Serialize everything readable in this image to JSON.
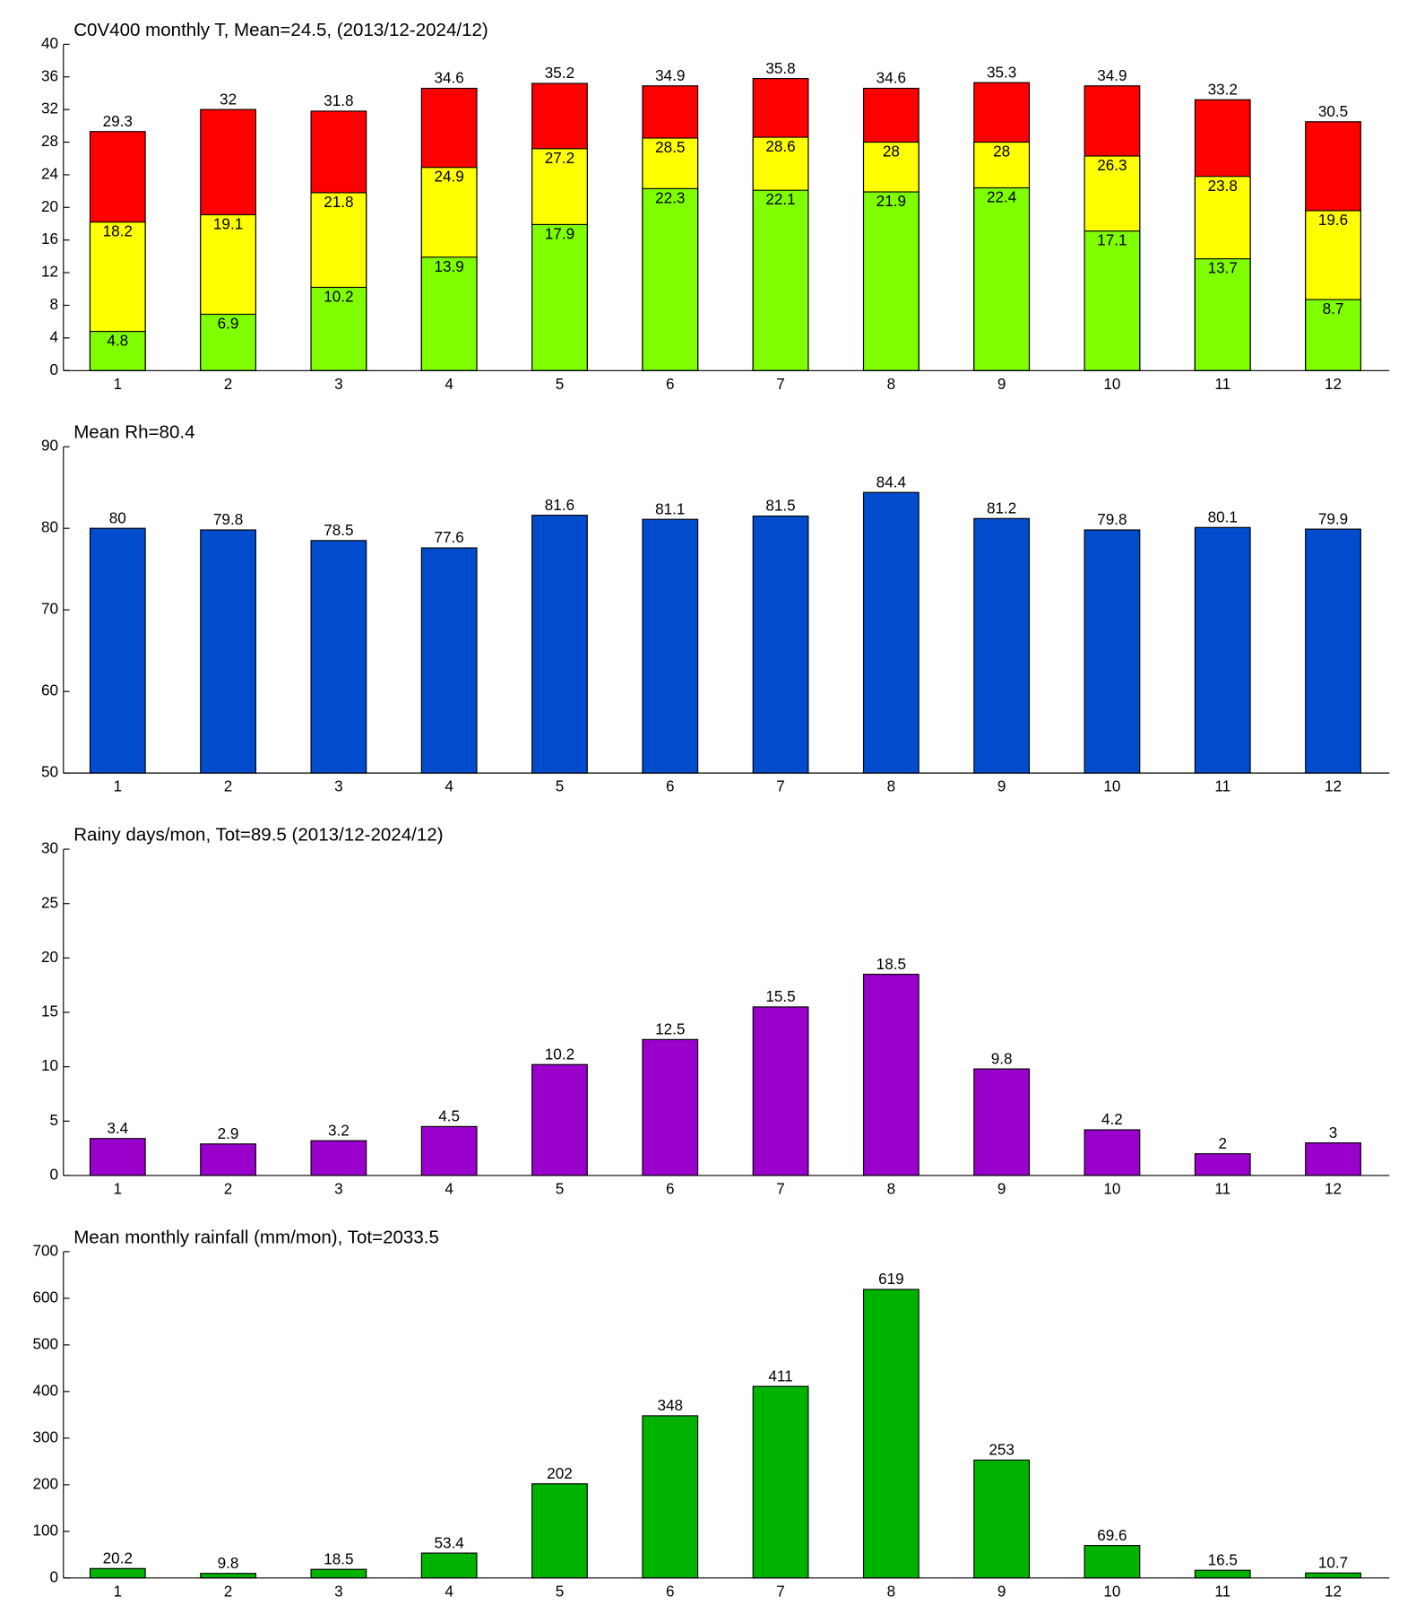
{
  "chart_data": [
    {
      "type": "bar",
      "title": "C0V400 monthly T, Mean=24.5, (2013/12-2024/12)",
      "categories": [
        "1",
        "2",
        "3",
        "4",
        "5",
        "6",
        "7",
        "8",
        "9",
        "10",
        "11",
        "12"
      ],
      "series": [
        {
          "color": "#ff0000",
          "values": [
            29.3,
            32,
            31.8,
            34.6,
            35.2,
            34.9,
            35.8,
            34.6,
            35.3,
            34.9,
            33.2,
            30.5
          ]
        },
        {
          "color": "#ffff00",
          "values": [
            18.2,
            19.1,
            21.8,
            24.9,
            27.2,
            28.5,
            28.6,
            28,
            28,
            26.3,
            23.8,
            19.6
          ]
        },
        {
          "color": "#80ff00",
          "values": [
            4.8,
            6.9,
            10.2,
            13.9,
            17.9,
            22.3,
            22.1,
            21.9,
            22.4,
            17.1,
            13.7,
            8.7
          ]
        }
      ],
      "ylim": [
        0,
        40
      ],
      "yticks": [
        0,
        4,
        8,
        12,
        16,
        20,
        24,
        28,
        32,
        36,
        40
      ],
      "grid": false
    },
    {
      "type": "bar",
      "title": "Mean Rh=80.4",
      "categories": [
        "1",
        "2",
        "3",
        "4",
        "5",
        "6",
        "7",
        "8",
        "9",
        "10",
        "11",
        "12"
      ],
      "values": [
        80,
        79.8,
        78.5,
        77.6,
        81.6,
        81.1,
        81.5,
        84.4,
        81.2,
        79.8,
        80.1,
        79.9
      ],
      "color": "#004ccc",
      "ylim": [
        50,
        90
      ],
      "yticks": [
        50,
        60,
        70,
        80,
        90
      ],
      "grid": false
    },
    {
      "type": "bar",
      "title": "Rainy days/mon, Tot=89.5 (2013/12-2024/12)",
      "categories": [
        "1",
        "2",
        "3",
        "4",
        "5",
        "6",
        "7",
        "8",
        "9",
        "10",
        "11",
        "12"
      ],
      "values": [
        3.4,
        2.9,
        3.2,
        4.5,
        10.2,
        12.5,
        15.5,
        18.5,
        9.8,
        4.2,
        2,
        3
      ],
      "color": "#9900cc",
      "ylim": [
        0,
        30
      ],
      "yticks": [
        0,
        5,
        10,
        15,
        20,
        25,
        30
      ],
      "grid": false
    },
    {
      "type": "bar",
      "title": "Mean monthly rainfall (mm/mon), Tot=2033.5",
      "categories": [
        "1",
        "2",
        "3",
        "4",
        "5",
        "6",
        "7",
        "8",
        "9",
        "10",
        "11",
        "12"
      ],
      "values": [
        20.2,
        9.8,
        18.5,
        53.4,
        202,
        348,
        411,
        619,
        253,
        69.6,
        16.5,
        10.7
      ],
      "color": "#00b300",
      "ylim": [
        0,
        700
      ],
      "yticks": [
        0,
        100,
        200,
        300,
        400,
        500,
        600,
        700
      ],
      "grid": false
    }
  ]
}
